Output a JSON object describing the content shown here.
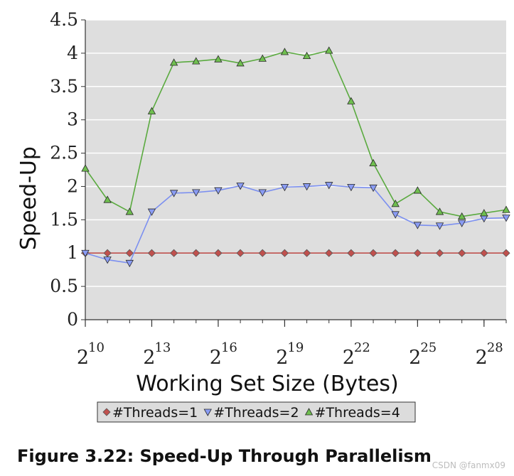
{
  "chart_data": {
    "type": "line",
    "title": "",
    "xlabel": "Working Set Size (Bytes)",
    "ylabel": "Speed-Up",
    "x_exponents": [
      10,
      11,
      12,
      13,
      14,
      15,
      16,
      17,
      18,
      19,
      20,
      21,
      22,
      23,
      24,
      25,
      26,
      27,
      28,
      29
    ],
    "x_ticks": [
      {
        "base": "2",
        "exp": "10",
        "value": 10
      },
      {
        "base": "2",
        "exp": "13",
        "value": 13
      },
      {
        "base": "2",
        "exp": "16",
        "value": 16
      },
      {
        "base": "2",
        "exp": "19",
        "value": 19
      },
      {
        "base": "2",
        "exp": "22",
        "value": 22
      },
      {
        "base": "2",
        "exp": "25",
        "value": 25
      },
      {
        "base": "2",
        "exp": "28",
        "value": 28
      }
    ],
    "xlim": [
      10,
      29
    ],
    "ylim": [
      0,
      4.5
    ],
    "y_ticks": [
      "0",
      "0.5",
      "1",
      "1.5",
      "2",
      "2.5",
      "3",
      "3.5",
      "4",
      "4.5"
    ],
    "grid": true,
    "legend_position": "bottom",
    "series": [
      {
        "name": "#Threads=1",
        "marker": "diamond",
        "line_color": "#c0504d",
        "fill_color": "#c0504d",
        "values": [
          1,
          1,
          1,
          1,
          1,
          1,
          1,
          1,
          1,
          1,
          1,
          1,
          1,
          1,
          1,
          1,
          1,
          1,
          1,
          1
        ]
      },
      {
        "name": "#Threads=2",
        "marker": "triangle-down",
        "line_color": "#7b8ff0",
        "fill_color": "#8a9cf4",
        "values": [
          1.0,
          0.9,
          0.85,
          1.62,
          1.9,
          1.91,
          1.94,
          2.01,
          1.91,
          1.99,
          2.0,
          2.02,
          1.99,
          1.98,
          1.58,
          1.42,
          1.41,
          1.45,
          1.52,
          1.53
        ]
      },
      {
        "name": "#Threads=4",
        "marker": "triangle-up",
        "line_color": "#5aaa3f",
        "fill_color": "#6fbf4f",
        "values": [
          2.27,
          1.8,
          1.62,
          3.13,
          3.86,
          3.88,
          3.91,
          3.85,
          3.92,
          4.02,
          3.96,
          4.04,
          3.28,
          2.35,
          1.74,
          1.94,
          1.62,
          1.55,
          1.6,
          1.65
        ]
      }
    ]
  },
  "caption": "Figure 3.22: Speed-Up Through Parallelism",
  "watermark": "CSDN @fanmx09",
  "colors": {
    "plot_background": "#dedede",
    "grid": "#ffffff",
    "axis": "#333333"
  }
}
